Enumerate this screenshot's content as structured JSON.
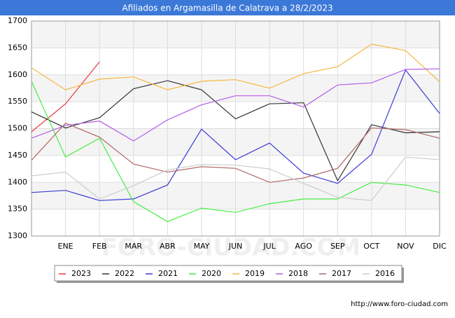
{
  "chart_data": {
    "type": "line",
    "title": "Afiliados en Argamasilla de Calatrava a 28/2/2023",
    "categories": [
      null,
      "ENE",
      "FEB",
      "MAR",
      "ABR",
      "MAY",
      "JUN",
      "JUL",
      "AGO",
      "SEP",
      "OCT",
      "NOV",
      "DIC"
    ],
    "ylim": [
      1300,
      1700
    ],
    "yticks": [
      1300,
      1350,
      1400,
      1450,
      1500,
      1550,
      1600,
      1650,
      1700
    ],
    "grid": true,
    "series": [
      {
        "name": "2023",
        "color": "#e8393a",
        "values": [
          1494,
          1546,
          1624,
          null,
          null,
          null,
          null,
          null,
          null,
          null,
          null,
          null,
          null
        ]
      },
      {
        "name": "2022",
        "color": "#333333",
        "values": [
          1531,
          1501,
          1520,
          1574,
          1589,
          1572,
          1518,
          1546,
          1548,
          1403,
          1507,
          1492,
          1494
        ]
      },
      {
        "name": "2021",
        "color": "#3a3ad8",
        "values": [
          1381,
          1385,
          1366,
          1369,
          1395,
          1499,
          1442,
          1473,
          1417,
          1398,
          1452,
          1609,
          1528
        ]
      },
      {
        "name": "2020",
        "color": "#44ee44",
        "values": [
          1588,
          1447,
          1482,
          1364,
          1327,
          1352,
          1344,
          1360,
          1369,
          1369,
          1400,
          1395,
          1381
        ]
      },
      {
        "name": "2019",
        "color": "#f7b73e",
        "values": [
          1613,
          1572,
          1592,
          1596,
          1572,
          1588,
          1591,
          1575,
          1602,
          1615,
          1657,
          1645,
          1587
        ]
      },
      {
        "name": "2018",
        "color": "#b45de8",
        "values": [
          1482,
          1506,
          1514,
          1477,
          1516,
          1544,
          1561,
          1561,
          1540,
          1581,
          1585,
          1610,
          1611
        ]
      },
      {
        "name": "2017",
        "color": "#b06868",
        "values": [
          1441,
          1510,
          1484,
          1434,
          1419,
          1429,
          1426,
          1400,
          1408,
          1426,
          1501,
          1498,
          1482
        ]
      },
      {
        "name": "2016",
        "color": "#cccccc",
        "values": [
          1412,
          1419,
          1369,
          1394,
          1423,
          1433,
          1432,
          1425,
          1398,
          1372,
          1366,
          1447,
          1442
        ]
      }
    ],
    "watermark": "FORO-CIUDAD.COM",
    "source": "http://www.foro-ciudad.com"
  }
}
